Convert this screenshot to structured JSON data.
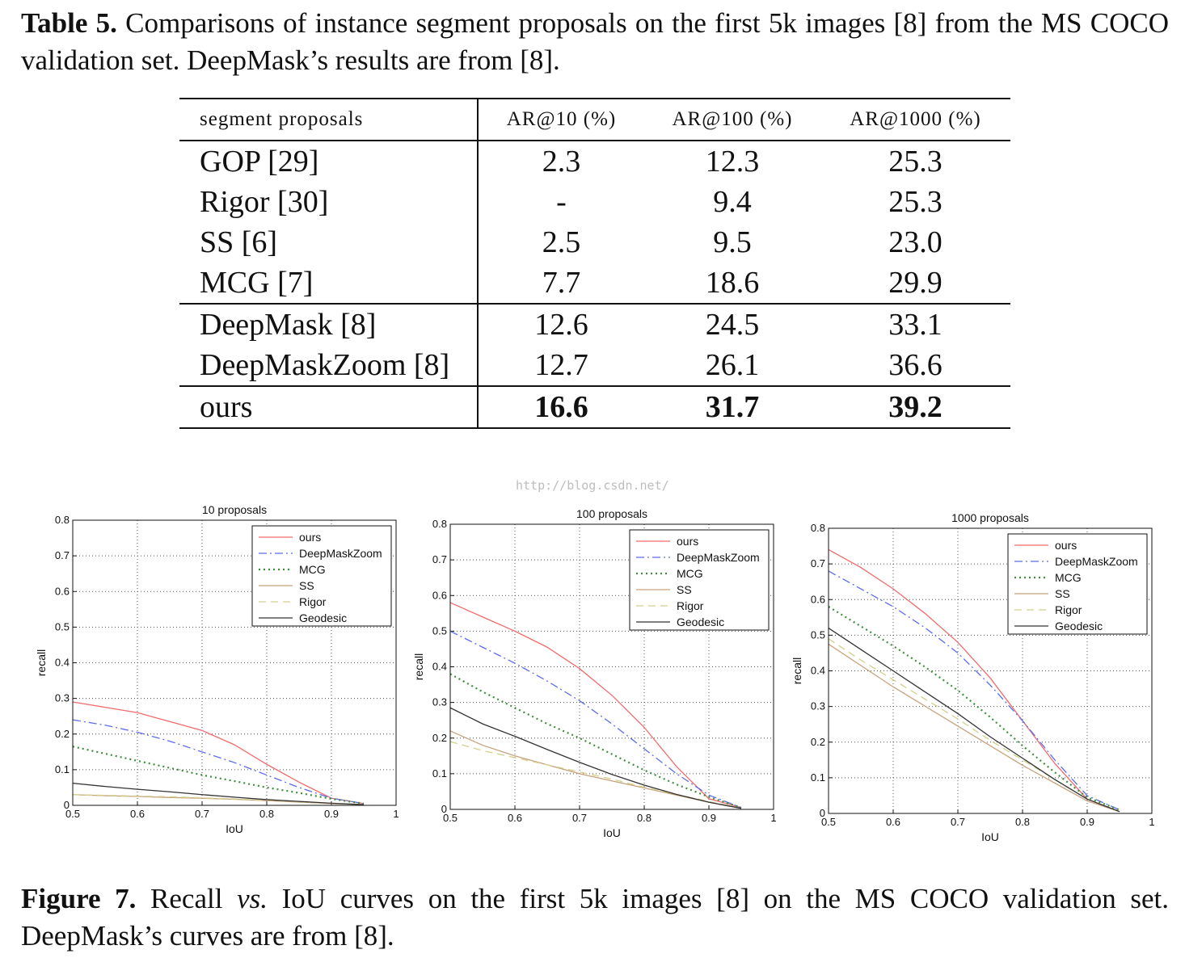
{
  "table_caption": {
    "label": "Table 5.",
    "text": "Comparisons of instance segment proposals on the first 5k images [8] from the MS COCO validation set. DeepMask’s results are from [8]."
  },
  "table": {
    "headers": [
      "segment proposals",
      "AR@10 (%)",
      "AR@100 (%)",
      "AR@1000 (%)"
    ],
    "rows": [
      {
        "method": "GOP [29]",
        "values": [
          "2.3",
          "12.3",
          "25.3"
        ]
      },
      {
        "method": "Rigor [30]",
        "values": [
          "-",
          "9.4",
          "25.3"
        ]
      },
      {
        "method": "SS [6]",
        "values": [
          "2.5",
          "9.5",
          "23.0"
        ]
      },
      {
        "method": "MCG [7]",
        "values": [
          "7.7",
          "18.6",
          "29.9"
        ]
      },
      {
        "method": "DeepMask [8]",
        "values": [
          "12.6",
          "24.5",
          "33.1"
        ]
      },
      {
        "method": "DeepMaskZoom [8]",
        "values": [
          "12.7",
          "26.1",
          "36.6"
        ]
      },
      {
        "method": "ours",
        "values": [
          "16.6",
          "31.7",
          "39.2"
        ]
      }
    ]
  },
  "watermark": "http://blog.csdn.net/",
  "figure_caption": {
    "label": "Figure 7.",
    "text_before": "Recall",
    "vs": "vs.",
    "text_after": "IoU curves on the first 5k images [8] on the MS COCO validation set. DeepMask’s curves are from [8]."
  },
  "colors": {
    "ours": "#f26b6b",
    "DeepMaskZoom": "#5b6bf0",
    "MCG": "#3b8f3b",
    "SS": "#c8a27c",
    "Rigor": "#d2d08a",
    "Geodesic": "#333333"
  },
  "chart_data": [
    {
      "type": "line",
      "title": "10 proposals",
      "xlabel": "IoU",
      "ylabel": "recall",
      "xlim": [
        0.5,
        1
      ],
      "ylim": [
        0,
        0.8
      ],
      "xticks": [
        "0.5",
        "0.6",
        "0.7",
        "0.8",
        "0.9",
        "1"
      ],
      "yticks": [
        "0",
        "0.1",
        "0.2",
        "0.3",
        "0.4",
        "0.5",
        "0.6",
        "0.7",
        "0.8"
      ],
      "grid": true,
      "legend_position": "top-right",
      "x": [
        0.5,
        0.55,
        0.6,
        0.65,
        0.7,
        0.75,
        0.8,
        0.85,
        0.9,
        0.95
      ],
      "series": [
        {
          "name": "ours",
          "style": "solid",
          "values": [
            0.29,
            0.275,
            0.26,
            0.235,
            0.21,
            0.17,
            0.115,
            0.065,
            0.02,
            0.005
          ]
        },
        {
          "name": "DeepMaskZoom",
          "style": "dashdot",
          "values": [
            0.24,
            0.225,
            0.205,
            0.18,
            0.15,
            0.12,
            0.085,
            0.05,
            0.02,
            0.005
          ]
        },
        {
          "name": "MCG",
          "style": "dotted",
          "values": [
            0.165,
            0.145,
            0.125,
            0.105,
            0.085,
            0.068,
            0.05,
            0.035,
            0.018,
            0.005
          ]
        },
        {
          "name": "SS",
          "style": "solid",
          "values": [
            0.03,
            0.027,
            0.025,
            0.022,
            0.02,
            0.017,
            0.013,
            0.009,
            0.005,
            0.002
          ]
        },
        {
          "name": "Rigor",
          "style": "dashed",
          "values": [
            0.03,
            0.028,
            0.026,
            0.024,
            0.021,
            0.018,
            0.014,
            0.01,
            0.006,
            0.002
          ]
        },
        {
          "name": "Geodesic",
          "style": "solid",
          "values": [
            0.062,
            0.053,
            0.045,
            0.038,
            0.03,
            0.023,
            0.016,
            0.011,
            0.006,
            0.002
          ]
        }
      ]
    },
    {
      "type": "line",
      "title": "100 proposals",
      "xlabel": "IoU",
      "ylabel": "recall",
      "xlim": [
        0.5,
        1
      ],
      "ylim": [
        0,
        0.8
      ],
      "xticks": [
        "0.5",
        "0.6",
        "0.7",
        "0.8",
        "0.9",
        "1"
      ],
      "yticks": [
        "0",
        "0.1",
        "0.2",
        "0.3",
        "0.4",
        "0.5",
        "0.6",
        "0.7",
        "0.8"
      ],
      "grid": true,
      "legend_position": "top-right",
      "x": [
        0.5,
        0.55,
        0.6,
        0.65,
        0.7,
        0.75,
        0.8,
        0.85,
        0.9,
        0.95
      ],
      "series": [
        {
          "name": "ours",
          "style": "solid",
          "values": [
            0.58,
            0.54,
            0.5,
            0.455,
            0.395,
            0.32,
            0.23,
            0.12,
            0.03,
            0.005
          ]
        },
        {
          "name": "DeepMaskZoom",
          "style": "dashdot",
          "values": [
            0.5,
            0.455,
            0.41,
            0.36,
            0.305,
            0.24,
            0.17,
            0.1,
            0.04,
            0.005
          ]
        },
        {
          "name": "MCG",
          "style": "dotted",
          "values": [
            0.38,
            0.33,
            0.285,
            0.24,
            0.2,
            0.155,
            0.11,
            0.07,
            0.035,
            0.005
          ]
        },
        {
          "name": "SS",
          "style": "solid",
          "values": [
            0.22,
            0.18,
            0.15,
            0.125,
            0.1,
            0.08,
            0.06,
            0.04,
            0.02,
            0.003
          ]
        },
        {
          "name": "Rigor",
          "style": "dashed",
          "values": [
            0.19,
            0.165,
            0.145,
            0.125,
            0.105,
            0.085,
            0.062,
            0.042,
            0.022,
            0.003
          ]
        },
        {
          "name": "Geodesic",
          "style": "solid",
          "values": [
            0.285,
            0.24,
            0.205,
            0.168,
            0.132,
            0.098,
            0.068,
            0.042,
            0.02,
            0.003
          ]
        }
      ]
    },
    {
      "type": "line",
      "title": "1000 proposals",
      "xlabel": "IoU",
      "ylabel": "recall",
      "xlim": [
        0.5,
        1
      ],
      "ylim": [
        0,
        0.8
      ],
      "xticks": [
        "0.5",
        "0.6",
        "0.7",
        "0.8",
        "0.9",
        "1"
      ],
      "yticks": [
        "0",
        "0.1",
        "0.2",
        "0.3",
        "0.4",
        "0.5",
        "0.6",
        "0.7",
        "0.8"
      ],
      "grid": true,
      "legend_position": "top-right",
      "x": [
        0.5,
        0.55,
        0.6,
        0.65,
        0.7,
        0.75,
        0.8,
        0.85,
        0.9,
        0.95
      ],
      "series": [
        {
          "name": "ours",
          "style": "solid",
          "values": [
            0.74,
            0.69,
            0.63,
            0.56,
            0.48,
            0.38,
            0.26,
            0.14,
            0.04,
            0.005
          ]
        },
        {
          "name": "DeepMaskZoom",
          "style": "dashdot",
          "values": [
            0.68,
            0.63,
            0.58,
            0.52,
            0.45,
            0.36,
            0.26,
            0.15,
            0.05,
            0.01
          ]
        },
        {
          "name": "MCG",
          "style": "dotted",
          "values": [
            0.58,
            0.525,
            0.47,
            0.41,
            0.345,
            0.27,
            0.19,
            0.115,
            0.045,
            0.01
          ]
        },
        {
          "name": "SS",
          "style": "solid",
          "values": [
            0.475,
            0.415,
            0.355,
            0.3,
            0.245,
            0.19,
            0.135,
            0.085,
            0.035,
            0.005
          ]
        },
        {
          "name": "Rigor",
          "style": "dashed",
          "values": [
            0.49,
            0.43,
            0.375,
            0.32,
            0.265,
            0.205,
            0.15,
            0.095,
            0.04,
            0.005
          ]
        },
        {
          "name": "Geodesic",
          "style": "solid",
          "values": [
            0.52,
            0.46,
            0.4,
            0.34,
            0.28,
            0.215,
            0.155,
            0.095,
            0.04,
            0.005
          ]
        }
      ]
    }
  ]
}
